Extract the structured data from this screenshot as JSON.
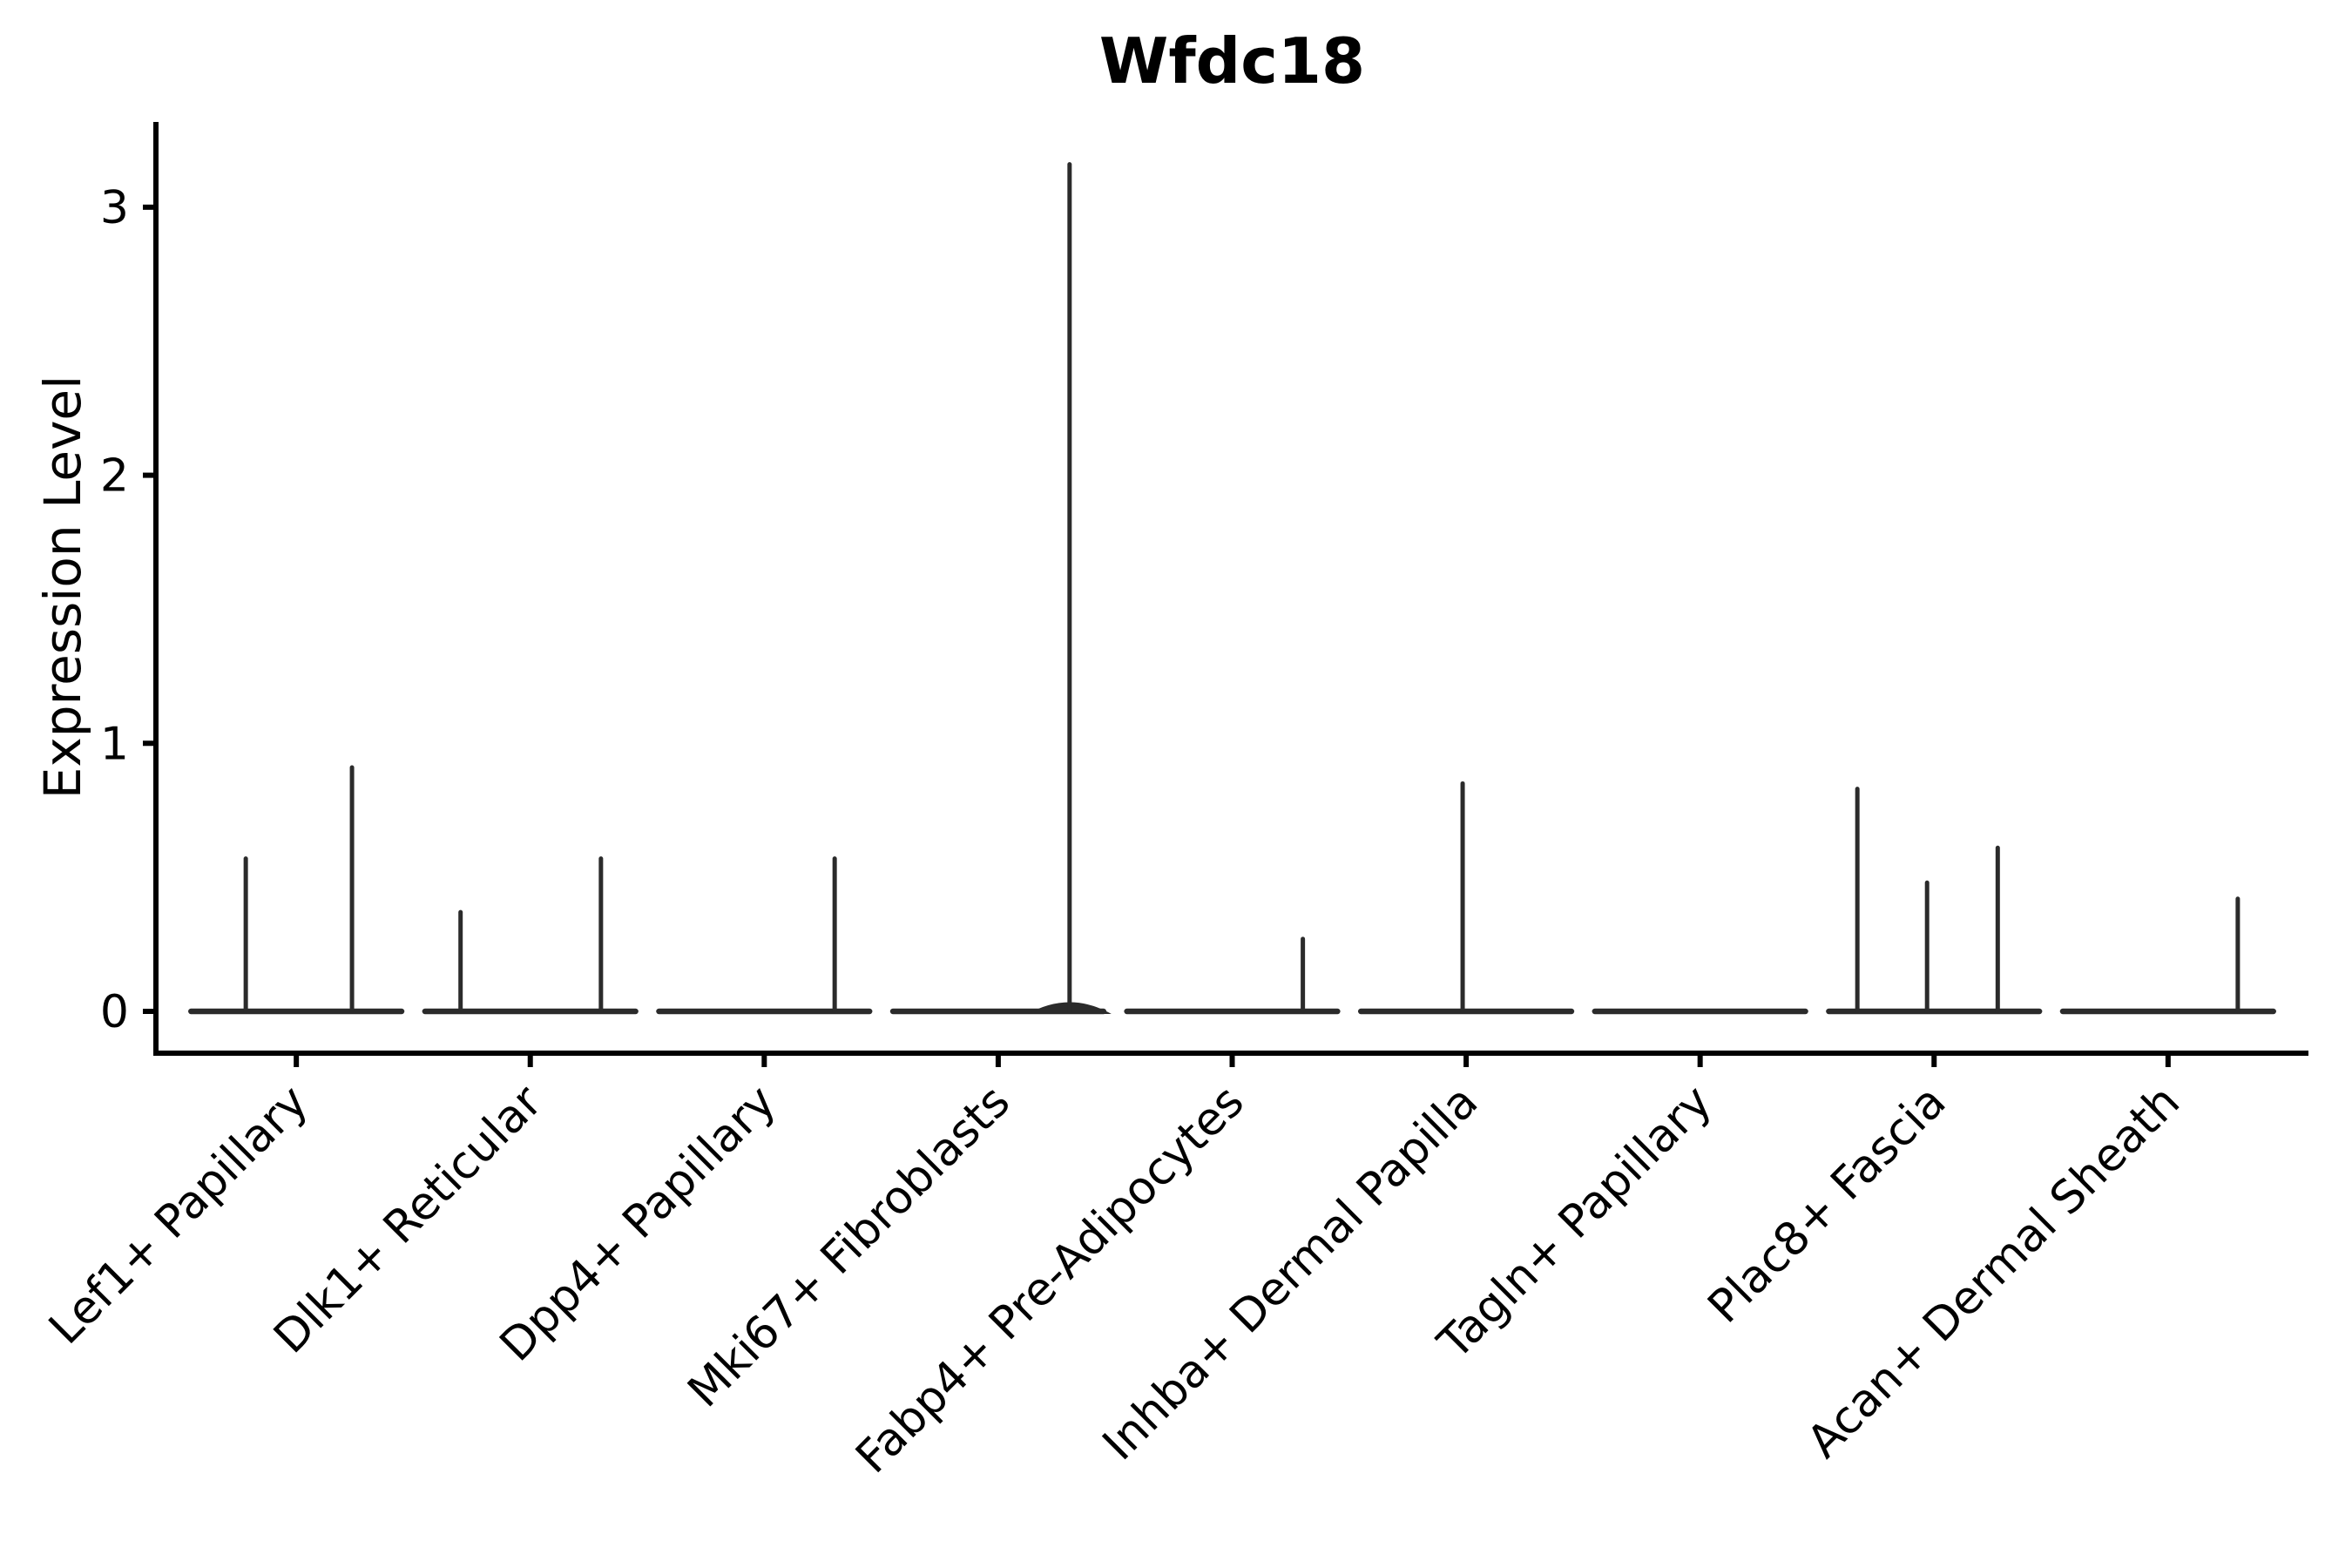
{
  "chart_data": {
    "type": "violin",
    "title": "Wfdc18",
    "title_bold": true,
    "xlabel": "",
    "ylabel": "Expression Level",
    "yticks": [
      0,
      1,
      2,
      3
    ],
    "ylim": [
      -0.156,
      3.318
    ],
    "x_units": [
      -0.6,
      8.6
    ],
    "violin_width": 0.9,
    "grid": false,
    "legend_position": "none",
    "categories": [
      "Lef1+ Papillary",
      "Dlk1+ Reticular",
      "Dpp4+ Papillary",
      "Mki67+ Fibroblasts",
      "Fabp4+ Pre-Adipocytes",
      "Inhba+ Dermal Papilla",
      "Tagln+ Papillary",
      "Plac8+ Fascia",
      "Acan+ Dermal Sheath"
    ],
    "series": [
      {
        "name": "Lef1+ Papillary",
        "baseline_value": 0,
        "spikes": [
          {
            "offset": -0.216,
            "value": 0.57
          },
          {
            "offset": 0.238,
            "value": 0.91
          }
        ]
      },
      {
        "name": "Dlk1+ Reticular",
        "baseline_value": 0,
        "spikes": [
          {
            "offset": -0.298,
            "value": 0.37
          },
          {
            "offset": 0.302,
            "value": 0.57
          }
        ]
      },
      {
        "name": "Dpp4+ Papillary",
        "baseline_value": 0,
        "spikes": [
          {
            "offset": 0.301,
            "value": 0.57
          }
        ]
      },
      {
        "name": "Mki67+ Fibroblasts",
        "baseline_value": 0,
        "spikes": [
          {
            "offset": 0.305,
            "value": 3.16,
            "base_bulge": true
          }
        ]
      },
      {
        "name": "Fabp4+ Pre-Adipocytes",
        "baseline_value": 0,
        "spikes": [
          {
            "offset": 0.302,
            "value": 0.27
          }
        ]
      },
      {
        "name": "Inhba+ Dermal Papilla",
        "baseline_value": 0,
        "spikes": [
          {
            "offset": -0.015,
            "value": 0.85
          }
        ]
      },
      {
        "name": "Tagln+ Papillary",
        "baseline_value": 0,
        "spikes": []
      },
      {
        "name": "Plac8+ Fascia",
        "baseline_value": 0,
        "spikes": [
          {
            "offset": -0.328,
            "value": 0.83
          },
          {
            "offset": -0.03,
            "value": 0.48
          },
          {
            "offset": 0.272,
            "value": 0.61
          }
        ]
      },
      {
        "name": "Acan+ Dermal Sheath",
        "baseline_value": 0,
        "spikes": [
          {
            "offset": 0.298,
            "value": 0.42
          }
        ]
      }
    ],
    "colors": {
      "violin_line": "#2b2b2b",
      "axis": "#000000",
      "text": "#000000",
      "background": "#ffffff"
    }
  }
}
